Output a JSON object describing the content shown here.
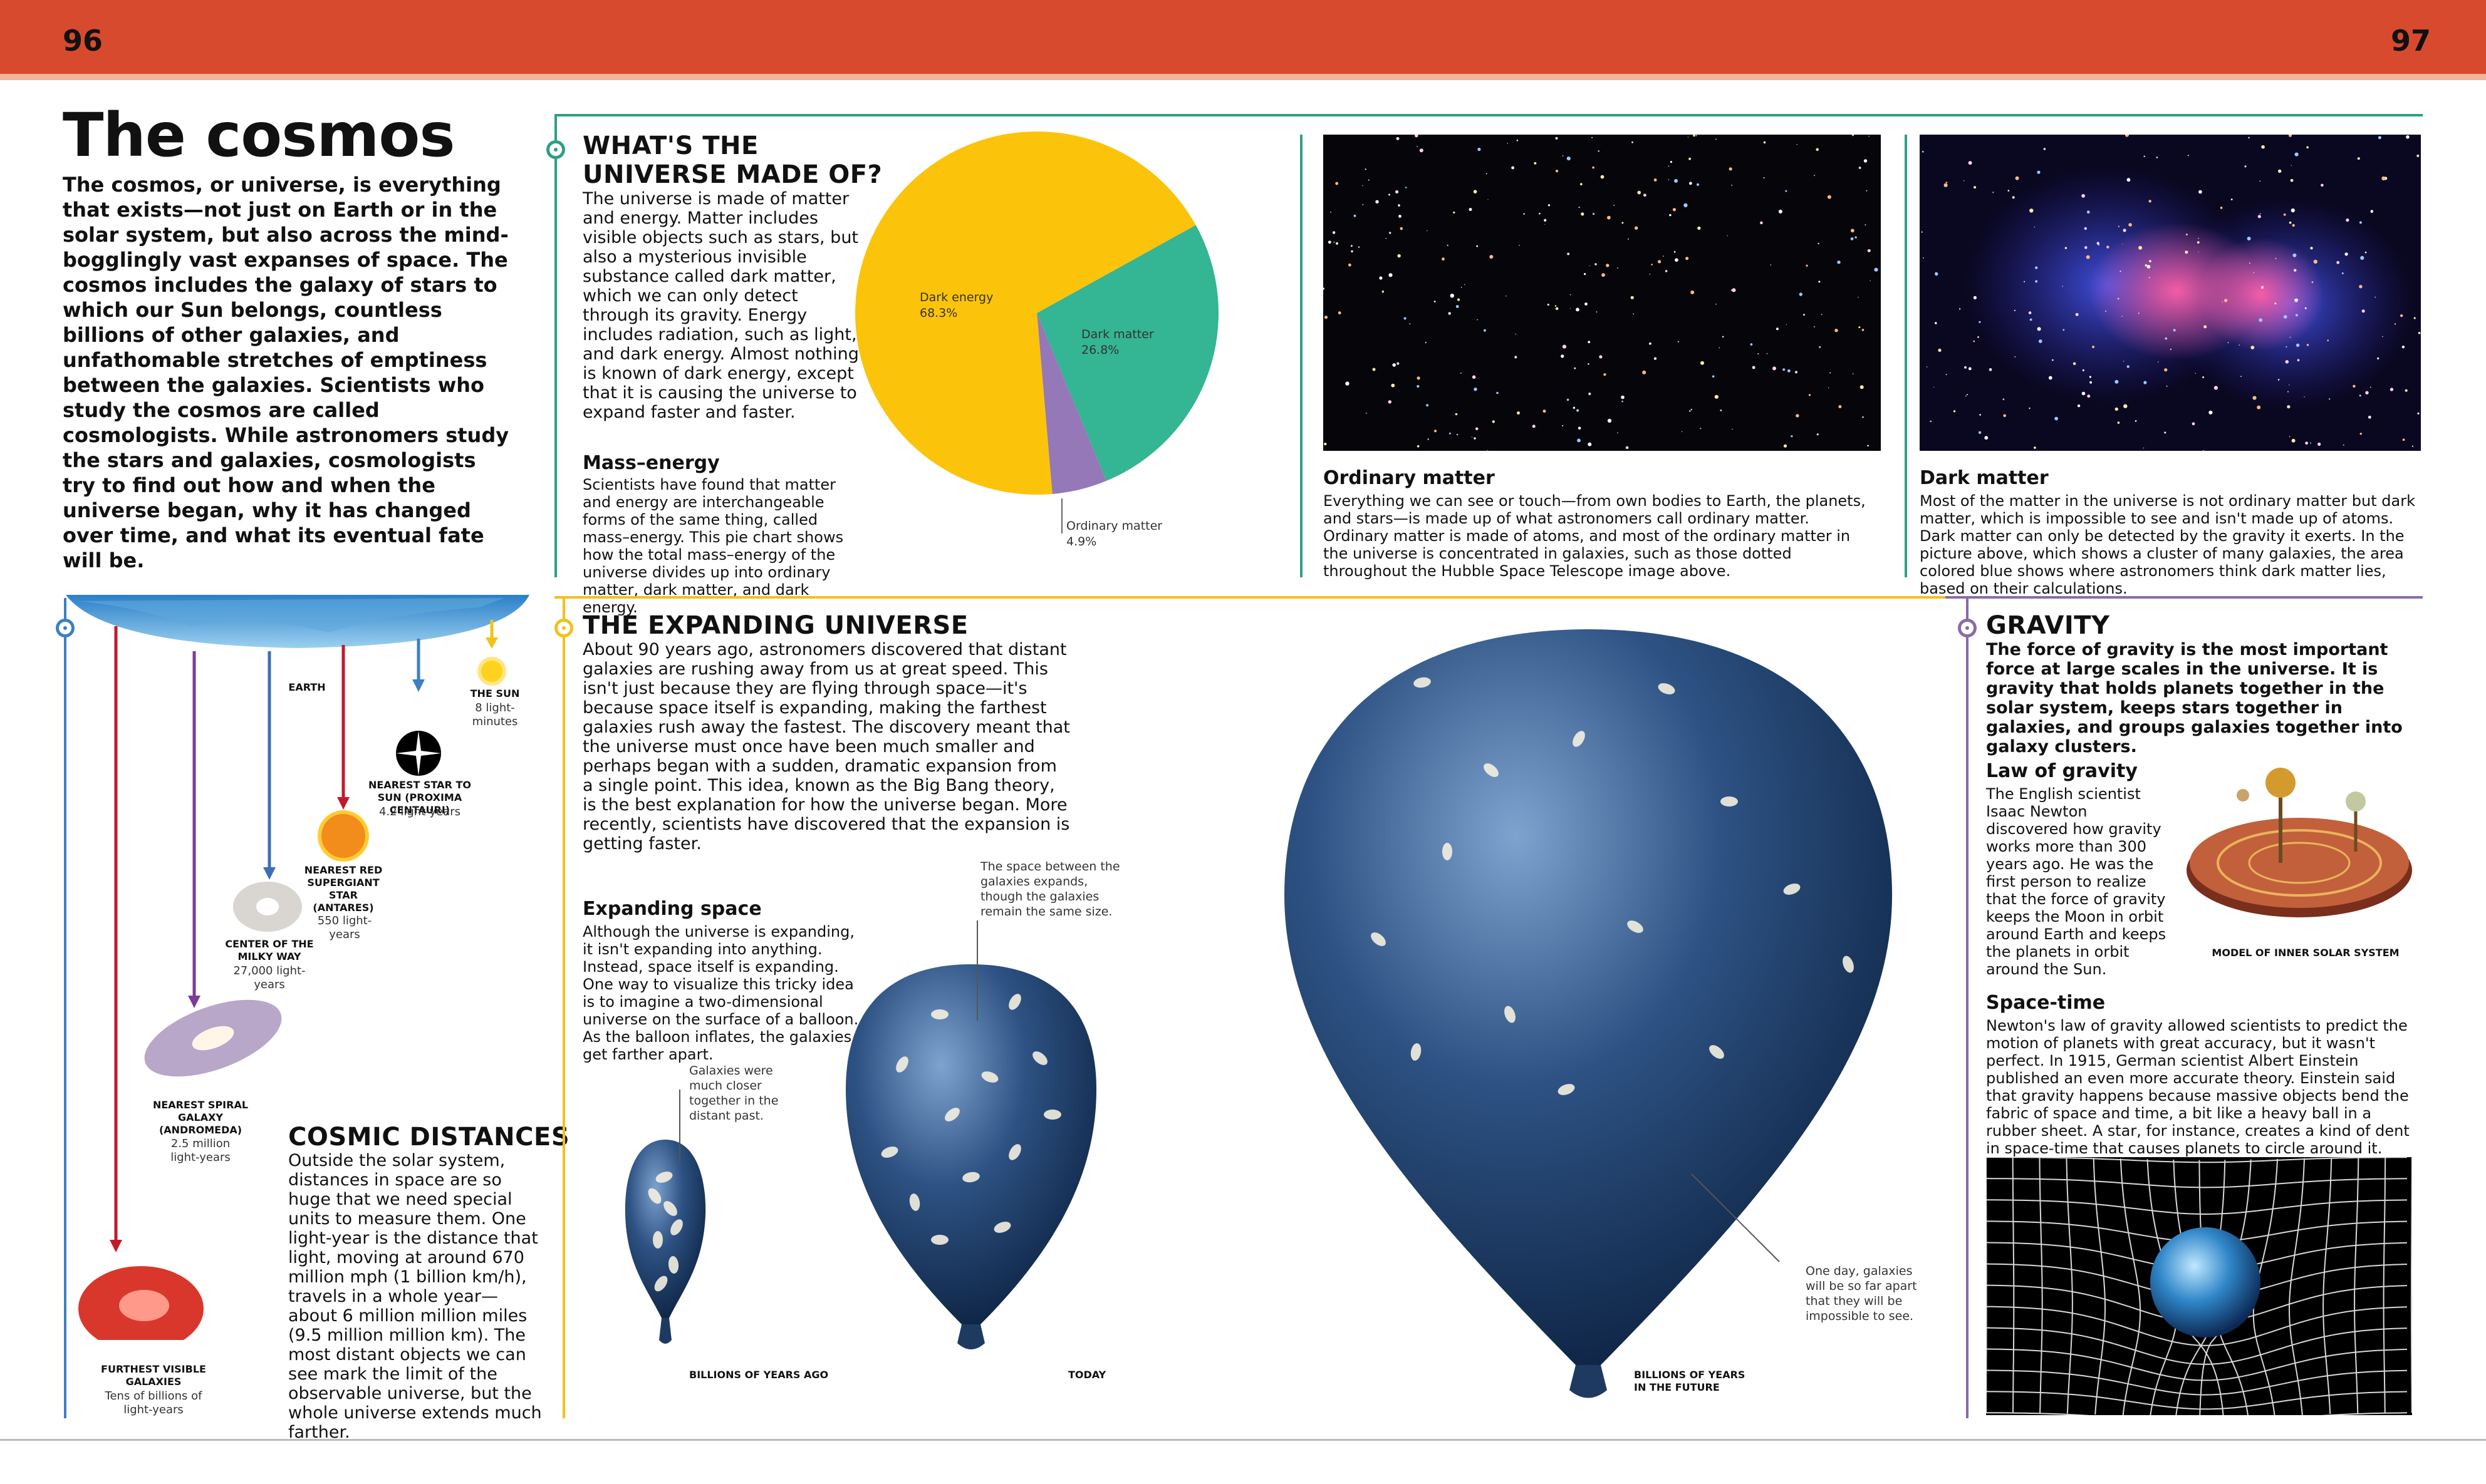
{
  "pages": {
    "left": "96",
    "right": "97"
  },
  "title": "The cosmos",
  "intro": "The cosmos, or universe, is everything that exists—not just on Earth or in the solar system, but also across the mind-bogglingly vast expanses of space. The cosmos includes the galaxy of stars to which our Sun belongs, countless billions of other galaxies, and unfathomable stretches of emptiness between the galaxies. Scientists who study the cosmos are called cosmologists. While astronomers study the stars and galaxies, cosmologists try to find out how and when the universe began, why it has changed over time, and what its eventual fate will be.",
  "made_of": {
    "heading_1": "WHAT'S THE",
    "heading_2": "UNIVERSE MADE OF?",
    "text": "The universe is made of matter and energy. Matter includes visible objects such as stars, but also a mysterious invisible substance called dark matter, which we can only detect through its gravity. Energy includes radiation, such as light, and dark energy. Almost nothing is known of dark energy, except that it is causing the universe to expand faster and faster.",
    "mass_energy_heading": "Mass–energy",
    "mass_energy_text": "Scientists have found that matter and energy are interchangeable forms of the same thing, called mass–energy. This pie chart shows how the total mass–energy of the universe divides up into ordinary matter, dark matter, and dark energy."
  },
  "chart_data": {
    "type": "pie",
    "slices": [
      {
        "label": "Dark energy",
        "value": 68.3,
        "value_label": "68.3%",
        "color": "#fcc30b"
      },
      {
        "label": "Dark matter",
        "value": 26.8,
        "value_label": "26.8%",
        "color": "#34b593"
      },
      {
        "label": "Ordinary matter",
        "value": 4.9,
        "value_label": "4.9%",
        "color": "#9478b8"
      }
    ]
  },
  "ordinary_matter": {
    "heading": "Ordinary matter",
    "text": "Everything we can see or touch—from own bodies to Earth, the planets, and stars—is made up of what astronomers call ordinary matter. Ordinary matter is made of atoms, and most of the ordinary matter in the universe is concentrated in galaxies, such as those dotted throughout the Hubble Space Telescope image above."
  },
  "dark_matter": {
    "heading": "Dark matter",
    "text": "Most of the matter in the universe is not ordinary matter but dark matter, which is impossible to see and isn't made up of atoms. Dark matter can only be detected by the gravity it exerts. In the picture above, which shows a cluster of many galaxies, the area colored blue shows where astronomers think dark matter lies, based on their calculations."
  },
  "distances": {
    "earth": "EARTH",
    "sun_b": "THE SUN",
    "sun_n": "8 light-minutes",
    "proxima_b": "NEAREST STAR TO SUN (PROXIMA CENTAURI)",
    "proxima_n": "4.2 light-years",
    "antares_b": "NEAREST RED SUPERGIANT STAR (ANTARES)",
    "antares_n": "550 light-years",
    "milkyway_b": "CENTER OF THE MILKY WAY",
    "milkyway_n": "27,000 light-years",
    "andromeda_b": "NEAREST SPIRAL GALAXY (ANDROMEDA)",
    "andromeda_n": "2.5 million light-years",
    "furthest_b": "FURTHEST VISIBLE GALAXIES",
    "furthest_n": "Tens of billions of light-years",
    "heading": "COSMIC DISTANCES",
    "text": "Outside the solar system, distances in space are so huge that we need special units to measure them. One light-year is the distance that light, moving at around 670 million mph (1 billion km/h), travels in a whole year—about 6 million million miles (9.5 million million km). The most distant objects we can see mark the limit of the observable universe, but the whole universe extends much farther."
  },
  "expanding": {
    "heading": "THE EXPANDING UNIVERSE",
    "text": "About 90 years ago, astronomers discovered that distant galaxies are rushing away from us at great speed. This isn't just because they are flying through space—it's because space itself is expanding, making the farthest galaxies rush away the fastest. The discovery meant that the universe must once have been much smaller and perhaps began with a sudden, dramatic expansion from a single point. This idea, known as the Big Bang theory, is the best explanation for how the universe began. More recently, scientists have discovered that the expansion is getting faster.",
    "space_heading": "Expanding space",
    "space_text": "Although the universe is expanding, it isn't expanding into anything. Instead, space itself is expanding. One way to visualize this tricky idea is to imagine a two-dimensional universe on the surface of a balloon. As the balloon inflates, the galaxies get farther apart.",
    "note_past": "Galaxies were much closer together in the distant past.",
    "note_today": "The space between the galaxies expands, though the galaxies remain the same size.",
    "note_future": "One day, galaxies will be so far apart that they will be impossible to see.",
    "label_past": "BILLIONS OF YEARS AGO",
    "label_today": "TODAY",
    "label_future": "BILLIONS OF YEARS IN THE FUTURE"
  },
  "gravity": {
    "heading": "GRAVITY",
    "intro": "The force of gravity is the most important force at large scales in the universe. It is gravity that holds planets together in the solar system, keeps stars together in galaxies, and groups galaxies together into galaxy clusters.",
    "law_heading": "Law of gravity",
    "law_text": "The English scientist Isaac Newton discovered how gravity works more than 300 years ago. He was the first person to realize that the force of gravity keeps the Moon in orbit around Earth and keeps the planets in orbit around the Sun.",
    "model_label": "MODEL OF INNER SOLAR SYSTEM",
    "spacetime_heading": "Space-time",
    "spacetime_text": "Newton's law of gravity allowed scientists to predict the motion of planets with great accuracy, but it wasn't perfect. In 1915, German scientist Albert Einstein published an even more accurate theory. Einstein said that gravity happens because massive objects bend the fabric of space and time, a bit like a heavy ball in a rubber sheet. A star, for instance, creates a kind of dent in space-time that causes planets to circle around it."
  },
  "colors": {
    "header": "#d84a2e",
    "teal": "#2e9f86",
    "yellow": "#f2c11a",
    "blue": "#3c7fc2",
    "purple": "#8a6aa8"
  }
}
